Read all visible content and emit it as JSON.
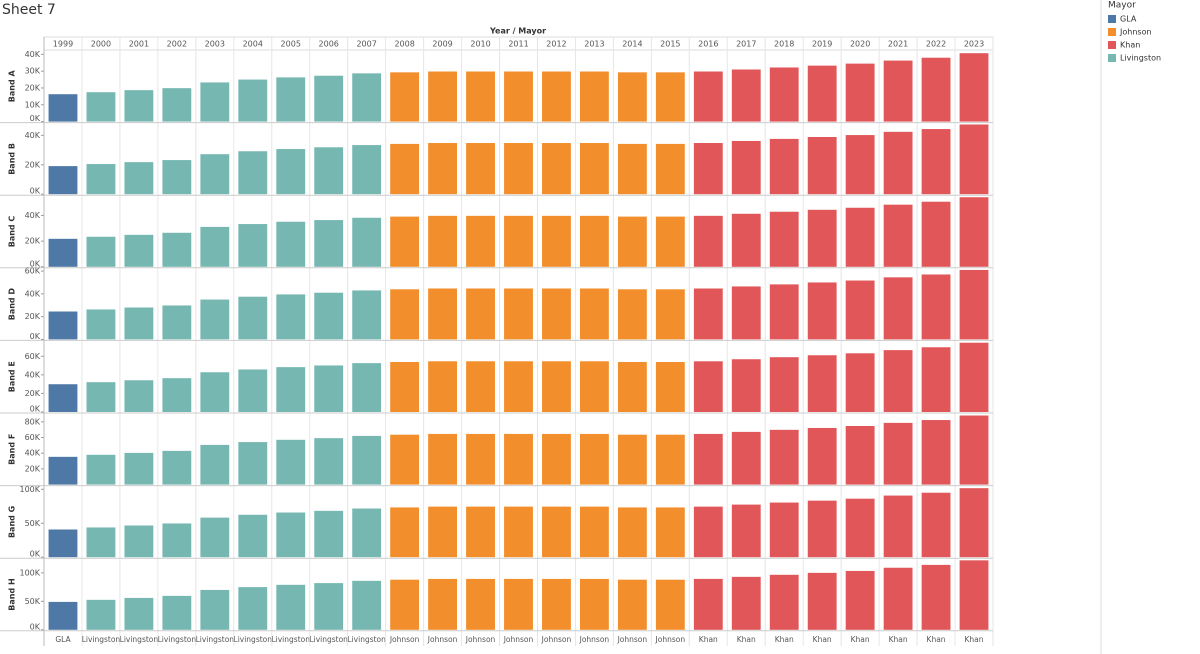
{
  "chart_data": {
    "type": "bar",
    "title": "Sheet 7",
    "x_label": "Year / Mayor",
    "categories": [
      "1999",
      "2000",
      "2001",
      "2002",
      "2003",
      "2004",
      "2005",
      "2006",
      "2007",
      "2008",
      "2009",
      "2010",
      "2011",
      "2012",
      "2013",
      "2014",
      "2015",
      "2016",
      "2017",
      "2018",
      "2019",
      "2020",
      "2021",
      "2022",
      "2023"
    ],
    "mayors": [
      "GLA",
      "Livingston",
      "Livingston",
      "Livingston",
      "Livingston",
      "Livingston",
      "Livingston",
      "Livingston",
      "Livingston",
      "Johnson",
      "Johnson",
      "Johnson",
      "Johnson",
      "Johnson",
      "Johnson",
      "Johnson",
      "Johnson",
      "Khan",
      "Khan",
      "Khan",
      "Khan",
      "Khan",
      "Khan",
      "Khan",
      "Khan"
    ],
    "legend": {
      "title": "Mayor",
      "position": "right",
      "items": [
        {
          "name": "GLA",
          "color": "#4e79a7"
        },
        {
          "name": "Johnson",
          "color": "#f28e2b"
        },
        {
          "name": "Khan",
          "color": "#e15759"
        },
        {
          "name": "Livingston",
          "color": "#76b7b2"
        }
      ]
    },
    "panels": [
      {
        "name": "Band A",
        "ylim": [
          0,
          42000
        ],
        "yticks": [
          {
            "value": 0,
            "label": "0K"
          },
          {
            "value": 10000,
            "label": "10K"
          },
          {
            "value": 20000,
            "label": "20K"
          },
          {
            "value": 30000,
            "label": "30K"
          },
          {
            "value": 40000,
            "label": "40K"
          }
        ],
        "values": [
          16300,
          17500,
          18700,
          19900,
          23300,
          25000,
          26300,
          27300,
          28700,
          29300,
          29800,
          29800,
          29800,
          29800,
          29800,
          29300,
          29300,
          29800,
          31000,
          32200,
          33300,
          34500,
          36300,
          38000,
          40700
        ]
      },
      {
        "name": "Band B",
        "ylim": [
          0,
          48000
        ],
        "yticks": [
          {
            "value": 0,
            "label": "0K"
          },
          {
            "value": 20000,
            "label": "20K"
          },
          {
            "value": 40000,
            "label": "40K"
          }
        ],
        "values": [
          19100,
          20500,
          21800,
          23200,
          27200,
          29200,
          30700,
          31900,
          33400,
          34200,
          34800,
          34800,
          34800,
          34800,
          34800,
          34200,
          34200,
          34800,
          36200,
          37600,
          38900,
          40200,
          42400,
          44300,
          47400
        ]
      },
      {
        "name": "Band C",
        "ylim": [
          0,
          55000
        ],
        "yticks": [
          {
            "value": 0,
            "label": "0K"
          },
          {
            "value": 20000,
            "label": "20K"
          },
          {
            "value": 40000,
            "label": "40K"
          }
        ],
        "values": [
          21800,
          23400,
          24900,
          26500,
          31100,
          33300,
          35100,
          36400,
          38200,
          39100,
          39700,
          39700,
          39700,
          39700,
          39700,
          39100,
          39100,
          39700,
          41300,
          42900,
          44400,
          46000,
          48400,
          50700,
          54200
        ]
      },
      {
        "name": "Band D",
        "ylim": [
          0,
          62000
        ],
        "yticks": [
          {
            "value": 0,
            "label": "0K"
          },
          {
            "value": 20000,
            "label": "20K"
          },
          {
            "value": 40000,
            "label": "40K"
          },
          {
            "value": 60000,
            "label": "60K"
          }
        ],
        "values": [
          24500,
          26300,
          28000,
          29800,
          35000,
          37500,
          39500,
          41000,
          43000,
          44000,
          44700,
          44700,
          44700,
          44700,
          44700,
          44000,
          44000,
          44700,
          46500,
          48300,
          50000,
          51700,
          54500,
          57000,
          61000
        ]
      },
      {
        "name": "Band E",
        "ylim": [
          0,
          76000
        ],
        "yticks": [
          {
            "value": 0,
            "label": "0K"
          },
          {
            "value": 20000,
            "label": "20K"
          },
          {
            "value": 40000,
            "label": "40K"
          },
          {
            "value": 60000,
            "label": "60K"
          }
        ],
        "values": [
          29900,
          32100,
          34200,
          36400,
          42800,
          45800,
          48300,
          50100,
          52600,
          53800,
          54600,
          54600,
          54600,
          54600,
          54600,
          53800,
          53800,
          54600,
          56800,
          59000,
          61100,
          63200,
          66600,
          69700,
          74600
        ]
      },
      {
        "name": "Band F",
        "ylim": [
          0,
          90000
        ],
        "yticks": [
          {
            "value": 20000,
            "label": "20K"
          },
          {
            "value": 40000,
            "label": "40K"
          },
          {
            "value": 60000,
            "label": "60K"
          },
          {
            "value": 80000,
            "label": "80K"
          }
        ],
        "values": [
          35400,
          38000,
          40400,
          43000,
          50600,
          54200,
          57100,
          59200,
          62100,
          63600,
          64600,
          64600,
          64600,
          64600,
          64600,
          63600,
          63600,
          64600,
          67200,
          69800,
          72200,
          74700,
          78700,
          82300,
          88100
        ]
      },
      {
        "name": "Band G",
        "ylim": [
          0,
          104000
        ],
        "yticks": [
          {
            "value": 0,
            "label": "0K"
          },
          {
            "value": 50000,
            "label": "50K"
          },
          {
            "value": 100000,
            "label": "100K"
          }
        ],
        "values": [
          40800,
          43800,
          46700,
          49700,
          58300,
          62500,
          65800,
          68300,
          71700,
          73300,
          74500,
          74500,
          74500,
          74500,
          74500,
          73300,
          73300,
          74500,
          77500,
          80500,
          83300,
          86200,
          90800,
          95000,
          101700
        ]
      },
      {
        "name": "Band H",
        "ylim": [
          0,
          124000
        ],
        "yticks": [
          {
            "value": 0,
            "label": "0K"
          },
          {
            "value": 50000,
            "label": "50K"
          },
          {
            "value": 100000,
            "label": "100K"
          }
        ],
        "values": [
          49000,
          52600,
          56000,
          59600,
          70000,
          75000,
          79000,
          82000,
          86000,
          88000,
          89400,
          89400,
          89400,
          89400,
          89400,
          88000,
          88000,
          89400,
          93000,
          96600,
          100000,
          103400,
          109000,
          114000,
          122000
        ]
      }
    ]
  }
}
